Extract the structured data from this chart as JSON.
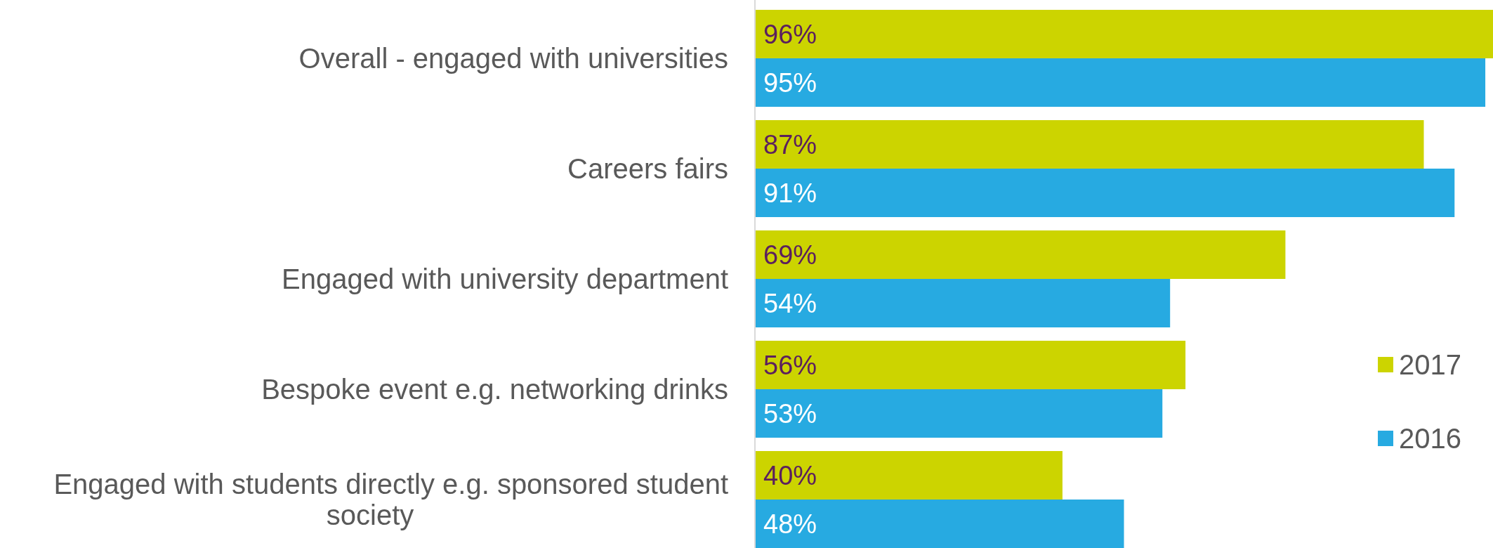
{
  "chart_data": {
    "type": "bar",
    "orientation": "horizontal",
    "categories": [
      "Overall - engaged with universities",
      "Careers fairs",
      "Engaged with university department",
      "Bespoke event e.g. networking drinks",
      "Engaged with students directly e.g. sponsored student society"
    ],
    "series": [
      {
        "name": "2017",
        "color": "#ccd400",
        "values": [
          96,
          87,
          69,
          56,
          40
        ],
        "value_labels": [
          "96%",
          "87%",
          "69%",
          "56%",
          "40%"
        ]
      },
      {
        "name": "2016",
        "color": "#27aae1",
        "values": [
          95,
          91,
          54,
          53,
          48
        ],
        "value_labels": [
          "95%",
          "91%",
          "54%",
          "53%",
          "48%"
        ]
      }
    ],
    "legend": "right"
  }
}
